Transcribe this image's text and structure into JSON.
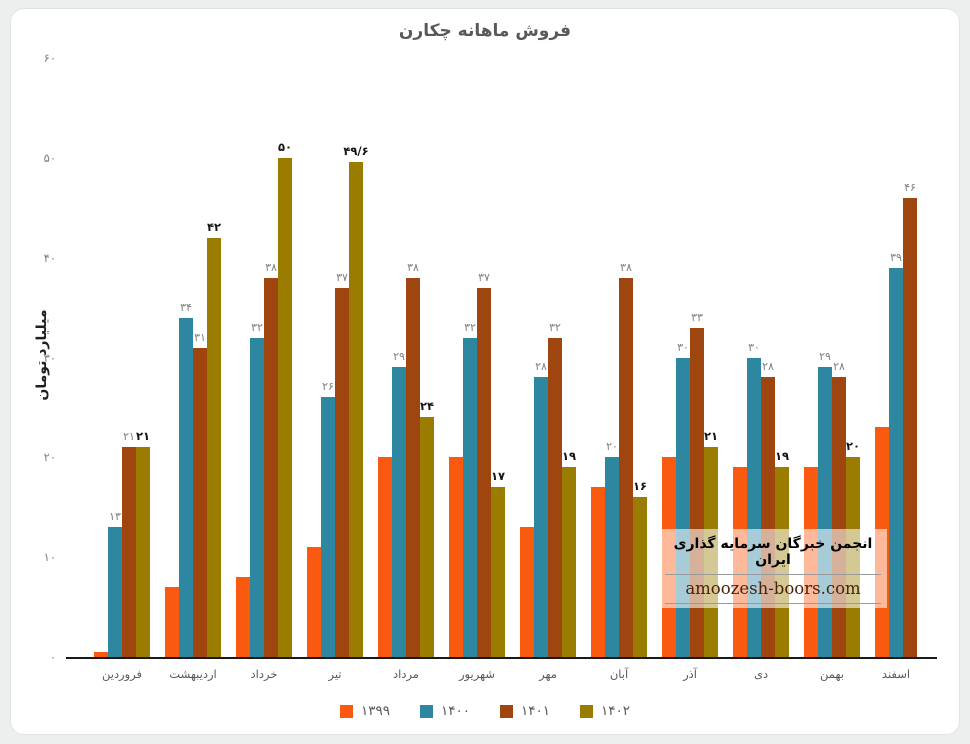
{
  "title": "فروش ماهانه چکارن",
  "y_axis_title": "میلیارد تومان",
  "y_ticks": [
    {
      "label": "۶۰",
      "value": 60
    },
    {
      "label": "۵۰",
      "value": 50
    },
    {
      "label": "۴۰",
      "value": 40
    },
    {
      "label": "۳۰",
      "value": 30
    },
    {
      "label": "۲۰",
      "value": 20
    },
    {
      "label": "۱۰",
      "value": 10
    },
    {
      "label": "۰",
      "value": 0
    }
  ],
  "legend": [
    {
      "key": "1399",
      "label": "۱۳۹۹",
      "color": "#fa5a0f"
    },
    {
      "key": "1400",
      "label": "۱۴۰۰",
      "color": "#2e87a0"
    },
    {
      "key": "1401",
      "label": "۱۴۰۱",
      "color": "#9e4510"
    },
    {
      "key": "1402",
      "label": "۱۴۰۲",
      "color": "#9a7d00"
    }
  ],
  "watermark": {
    "line1": "انجمن خبرگان سرمایه گذاری ایران",
    "line2": "amoozesh-boors.com"
  },
  "chart_data": {
    "type": "bar",
    "title": "فروش ماهانه چکارن",
    "xlabel": "",
    "ylabel": "میلیارد تومان",
    "ylim": [
      0,
      60
    ],
    "grid": false,
    "legend_position": "bottom",
    "categories": [
      "فروردین",
      "اردیبهشت",
      "خرداد",
      "تیر",
      "مرداد",
      "شهریور",
      "مهر",
      "آبان",
      "آذر",
      "دی",
      "بهمن",
      "اسفند"
    ],
    "series": [
      {
        "name": "۱۳۹۹",
        "key": "1399",
        "color": "#fa5a0f",
        "bold_labels": false,
        "values": [
          0.5,
          7,
          8,
          11,
          20,
          20,
          13,
          17,
          20,
          19,
          19,
          23
        ],
        "labels": [
          "",
          "",
          "",
          "",
          "",
          "",
          "",
          "",
          "",
          "",
          "",
          ""
        ]
      },
      {
        "name": "۱۴۰۰",
        "key": "1400",
        "color": "#2e87a0",
        "bold_labels": false,
        "values": [
          13,
          34,
          32,
          26,
          29,
          32,
          28,
          20,
          30,
          30,
          29,
          39
        ],
        "labels": [
          "۱۳",
          "۳۴",
          "۳۲",
          "۲۶",
          "۲۹",
          "۳۲",
          "۲۸",
          "۲۰",
          "۳۰",
          "۳۰",
          "۲۹",
          "۳۹"
        ]
      },
      {
        "name": "۱۴۰۱",
        "key": "1401",
        "color": "#9e4510",
        "bold_labels": false,
        "values": [
          21,
          31,
          38,
          37,
          38,
          37,
          32,
          38,
          33,
          28,
          28,
          46
        ],
        "labels": [
          "۲۱",
          "۳۱",
          "۳۸",
          "۳۷",
          "۳۸",
          "۳۷",
          "۳۲",
          "۳۸",
          "۳۳",
          "۲۸",
          "۲۸",
          "۴۶"
        ]
      },
      {
        "name": "۱۴۰۲",
        "key": "1402",
        "color": "#9a7d00",
        "bold_labels": true,
        "values": [
          21,
          42,
          50,
          49.6,
          24,
          17,
          19,
          16,
          21,
          19,
          20,
          null
        ],
        "labels": [
          "۲۱",
          "۴۲",
          "۵۰",
          "۴۹/۶",
          "۲۴",
          "۱۷",
          "۱۹",
          "۱۶",
          "۲۱",
          "۱۹",
          "۲۰",
          null
        ]
      }
    ]
  }
}
